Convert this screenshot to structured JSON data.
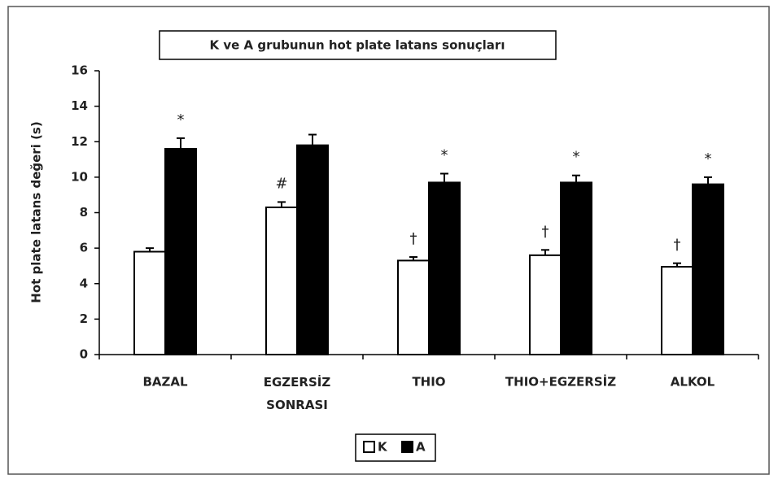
{
  "chart_data": {
    "type": "bar",
    "title": "K ve A grubunun hot plate latans sonuçları",
    "y_label": "Hot plate latans değeri (s)",
    "categories": [
      "BAZAL",
      "EGZERSİZ SONRASI",
      "THIO",
      "THIO+EGZERSİZ",
      "ALKOL"
    ],
    "series": [
      {
        "name": "K",
        "color": "#ffffff",
        "values": [
          5.8,
          8.3,
          5.3,
          5.6,
          4.95
        ],
        "errors": [
          0.2,
          0.3,
          0.2,
          0.3,
          0.2
        ],
        "markers": [
          null,
          "#",
          "†",
          "†",
          "†"
        ]
      },
      {
        "name": "A",
        "color": "#000000",
        "values": [
          11.6,
          11.8,
          9.7,
          9.7,
          9.6
        ],
        "errors": [
          0.6,
          0.6,
          0.5,
          0.4,
          0.4
        ],
        "markers": [
          "*",
          null,
          "*",
          "*",
          "*"
        ]
      }
    ],
    "ylim": [
      0,
      16
    ],
    "yticks": [
      0,
      2,
      4,
      6,
      8,
      10,
      12,
      14,
      16
    ],
    "grid": false,
    "legend": "bottom"
  }
}
